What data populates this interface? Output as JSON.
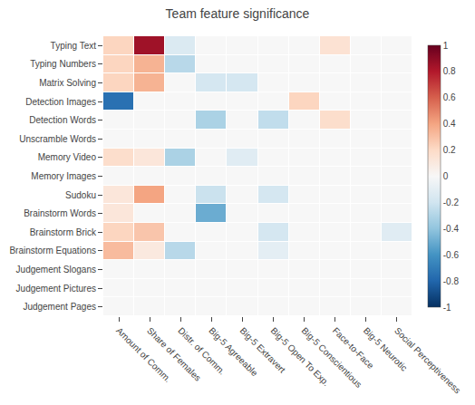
{
  "chart_data": {
    "type": "heatmap",
    "title": "Team feature significance",
    "rows": [
      "Typing Text",
      "Typing Numbers",
      "Matrix Solving",
      "Detection Images",
      "Detection Words",
      "Unscramble Words",
      "Memory Video",
      "Memory Images",
      "Sudoku",
      "Brainstorm Words",
      "Brainstorm Brick",
      "Brainstorm Equations",
      "Judgement Slogans",
      "Judgement Pictures",
      "Judgement Pages"
    ],
    "cols": [
      "Amount of Comm.",
      "Share of Females",
      "Distr. of Comm.",
      "Big-5 Agreeable",
      "Big-5 Extravert",
      "Big-5 Open To Exp.",
      "Big-5 Conscientious",
      "Face-to-Face",
      "Big-5 Neurotic",
      "Social Perceptiveness"
    ],
    "values": [
      [
        0.22,
        0.85,
        -0.15,
        0.0,
        0.0,
        0.0,
        0.0,
        0.15,
        0.0,
        0.0
      ],
      [
        0.22,
        0.35,
        -0.28,
        0.0,
        0.0,
        0.0,
        0.0,
        0.0,
        0.0,
        0.0
      ],
      [
        0.22,
        0.35,
        0.0,
        -0.18,
        -0.18,
        0.0,
        0.0,
        0.0,
        0.0,
        0.0
      ],
      [
        -0.75,
        0.0,
        0.0,
        0.0,
        0.0,
        0.0,
        0.22,
        0.0,
        0.0,
        0.0
      ],
      [
        0.0,
        0.0,
        0.0,
        -0.32,
        0.0,
        -0.25,
        0.0,
        0.18,
        0.0,
        0.0
      ],
      [
        0.0,
        0.0,
        0.0,
        0.0,
        0.0,
        0.0,
        0.0,
        0.0,
        0.0,
        0.0
      ],
      [
        0.18,
        0.12,
        -0.32,
        0.0,
        -0.12,
        0.0,
        0.0,
        0.0,
        0.0,
        0.0
      ],
      [
        0.0,
        0.0,
        0.0,
        0.0,
        0.0,
        0.0,
        0.0,
        0.0,
        0.0,
        0.0
      ],
      [
        0.12,
        0.4,
        0.0,
        -0.22,
        0.0,
        -0.18,
        0.0,
        0.0,
        0.0,
        0.0
      ],
      [
        0.12,
        0.0,
        0.0,
        -0.5,
        0.0,
        0.0,
        0.0,
        0.0,
        0.0,
        0.0
      ],
      [
        0.22,
        0.28,
        0.0,
        0.0,
        0.0,
        -0.18,
        0.0,
        0.0,
        0.0,
        -0.12
      ],
      [
        0.32,
        0.1,
        -0.28,
        0.0,
        0.0,
        -0.1,
        0.0,
        0.0,
        0.0,
        0.0
      ],
      [
        0.0,
        0.0,
        0.0,
        0.0,
        0.0,
        0.0,
        0.0,
        0.0,
        0.0,
        0.0
      ],
      [
        0.0,
        0.0,
        0.0,
        0.0,
        0.0,
        0.0,
        0.0,
        0.0,
        0.0,
        0.0
      ],
      [
        0.0,
        0.0,
        0.0,
        0.0,
        0.0,
        0.0,
        0.0,
        0.0,
        0.0,
        0.0
      ]
    ],
    "color": "RdBu_r",
    "colorbar_range": [
      -1,
      1
    ],
    "colorbar_ticks": [
      1,
      0.8,
      0.6,
      0.4,
      0.2,
      0,
      -0.2,
      -0.4,
      -0.6,
      -0.8,
      -1
    ],
    "grid": false
  }
}
